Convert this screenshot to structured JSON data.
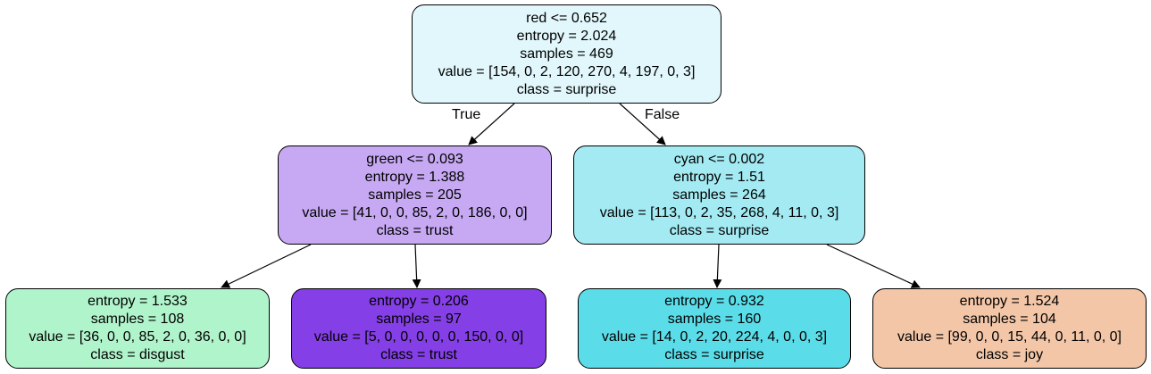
{
  "tree": {
    "root": {
      "split": "red <= 0.652",
      "entropy": "entropy = 2.024",
      "samples": "samples = 469",
      "value": "value = [154, 0, 2, 120, 270, 4, 197, 0, 3]",
      "class": "class = surprise",
      "color": "#e1f7fb"
    },
    "left": {
      "split": "green <= 0.093",
      "entropy": "entropy = 1.388",
      "samples": "samples = 205",
      "value": "value = [41, 0, 0, 85, 2, 0, 186, 0, 0]",
      "class": "class = trust",
      "color": "#c7a9f3"
    },
    "right": {
      "split": "cyan <= 0.002",
      "entropy": "entropy = 1.51",
      "samples": "samples = 264",
      "value": "value = [113, 0, 2, 35, 268, 4, 11, 0, 3]",
      "class": "class = surprise",
      "color": "#a3eaf2"
    },
    "leaf1": {
      "entropy": "entropy = 1.533",
      "samples": "samples = 108",
      "value": "value = [36, 0, 0, 85, 2, 0, 36, 0, 0]",
      "class": "class = disgust",
      "color": "#b0f4cb"
    },
    "leaf2": {
      "entropy": "entropy = 0.206",
      "samples": "samples = 97",
      "value": "value = [5, 0, 0, 0, 0, 0, 150, 0, 0]",
      "class": "class = trust",
      "color": "#853fe6"
    },
    "leaf3": {
      "entropy": "entropy = 0.932",
      "samples": "samples = 160",
      "value": "value = [14, 0, 2, 20, 224, 4, 0, 0, 3]",
      "class": "class = surprise",
      "color": "#5bdde9"
    },
    "leaf4": {
      "entropy": "entropy = 1.524",
      "samples": "samples = 104",
      "value": "value = [99, 0, 0, 15, 44, 0, 11, 0, 0]",
      "class": "class = joy",
      "color": "#f3c6a8"
    }
  },
  "edge_labels": {
    "true": "True",
    "false": "False"
  }
}
